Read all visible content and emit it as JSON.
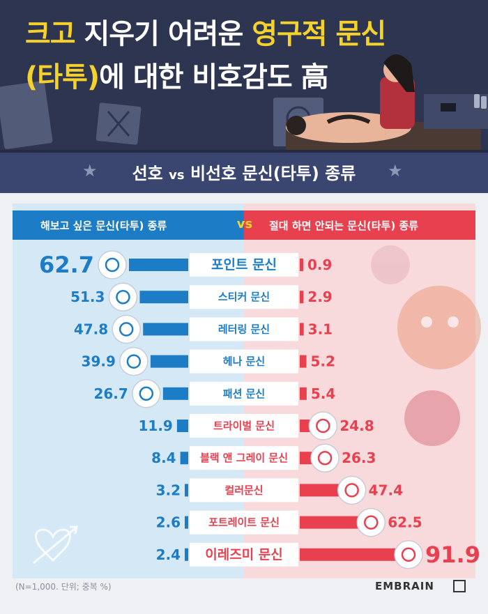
{
  "header": {
    "title_line1": [
      {
        "text": "크고 ",
        "color": "yellow"
      },
      {
        "text": "지우기 어려운 ",
        "color": "white"
      },
      {
        "text": "영구적 문신",
        "color": "yellow"
      }
    ],
    "title_line2": [
      {
        "text": "(타투)",
        "color": "yellow"
      },
      {
        "text": "에 대한 비호감도 高",
        "color": "white"
      }
    ]
  },
  "subtitle": {
    "part1": "선호 ",
    "vs": "vs",
    "part2": " 비선호 문신(타투) 종류"
  },
  "footnote": "(N=1,000. 단위; 중복 %)",
  "brand": "EMBRAIN",
  "colors": {
    "left": "#1c7cc6",
    "right": "#e8404f",
    "yellow": "#f5d22b",
    "navy": "#2d3550"
  },
  "chart_data": {
    "type": "bar",
    "left_header": "해보고 싶은 문신(타투) 종류",
    "vs_label": "vs",
    "right_header": "절대 하면 안되는 문신(타투) 종류",
    "categories": [
      "포인트 문신",
      "스티커 문신",
      "레터링 문신",
      "헤나 문신",
      "패션 문신",
      "트라이벌 문신",
      "블랙 앤 그레이 문신",
      "컬러문신",
      "포트레이트 문신",
      "이레즈미 문신"
    ],
    "series": [
      {
        "name": "해보고 싶은 문신(타투) 종류",
        "values": [
          62.7,
          51.3,
          47.8,
          39.9,
          26.7,
          11.9,
          8.4,
          3.2,
          2.6,
          2.4
        ]
      },
      {
        "name": "절대 하면 안되는 문신(타투) 종류",
        "values": [
          0.9,
          2.9,
          3.1,
          5.2,
          5.4,
          24.8,
          26.3,
          47.4,
          62.5,
          91.9
        ]
      }
    ],
    "label_texts": {
      "left": [
        "62.7",
        "51.3",
        "47.8",
        "39.9",
        "26.7",
        "11.9",
        "8.4",
        "3.2",
        "2.6",
        "2.4"
      ],
      "right": [
        "0.9",
        "2.9",
        "3.1",
        "5.2",
        "5.4",
        "24.8",
        "26.3",
        "47.4",
        "62.5",
        "91.9"
      ]
    },
    "icons": [
      "heart-arrow-icon",
      "sticker-sheet-icon",
      "lettering-icon",
      "henna-eye-icon",
      "fashion-swallow-icon",
      "tribal-icon",
      "black-grey-icon",
      "color-tattoo-icon",
      "portrait-icon",
      "irezumi-icon"
    ]
  }
}
